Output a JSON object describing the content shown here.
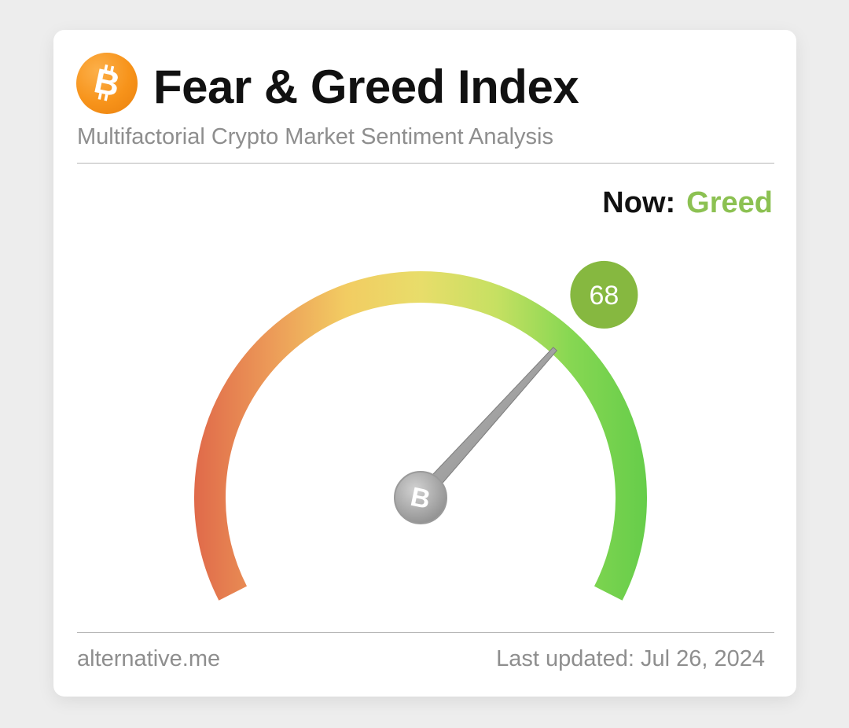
{
  "header": {
    "logo_icon": "bitcoin-icon",
    "title": "Fear & Greed Index",
    "subtitle": "Multifactorial Crypto Market Sentiment Analysis"
  },
  "status": {
    "now_label": "Now:",
    "now_value": "Greed",
    "now_color": "#8cc152"
  },
  "gauge": {
    "value": 68,
    "min": 0,
    "max": 100,
    "value_badge_color": "#86b840",
    "hub_icon": "bitcoin-icon",
    "gradient_colors": [
      "#e06a4a",
      "#ec9a58",
      "#f2cc62",
      "#e8dd6a",
      "#c6e062",
      "#86d752",
      "#66cd4a"
    ]
  },
  "footer": {
    "source": "alternative.me",
    "updated": "Last updated: Jul 26, 2024"
  }
}
